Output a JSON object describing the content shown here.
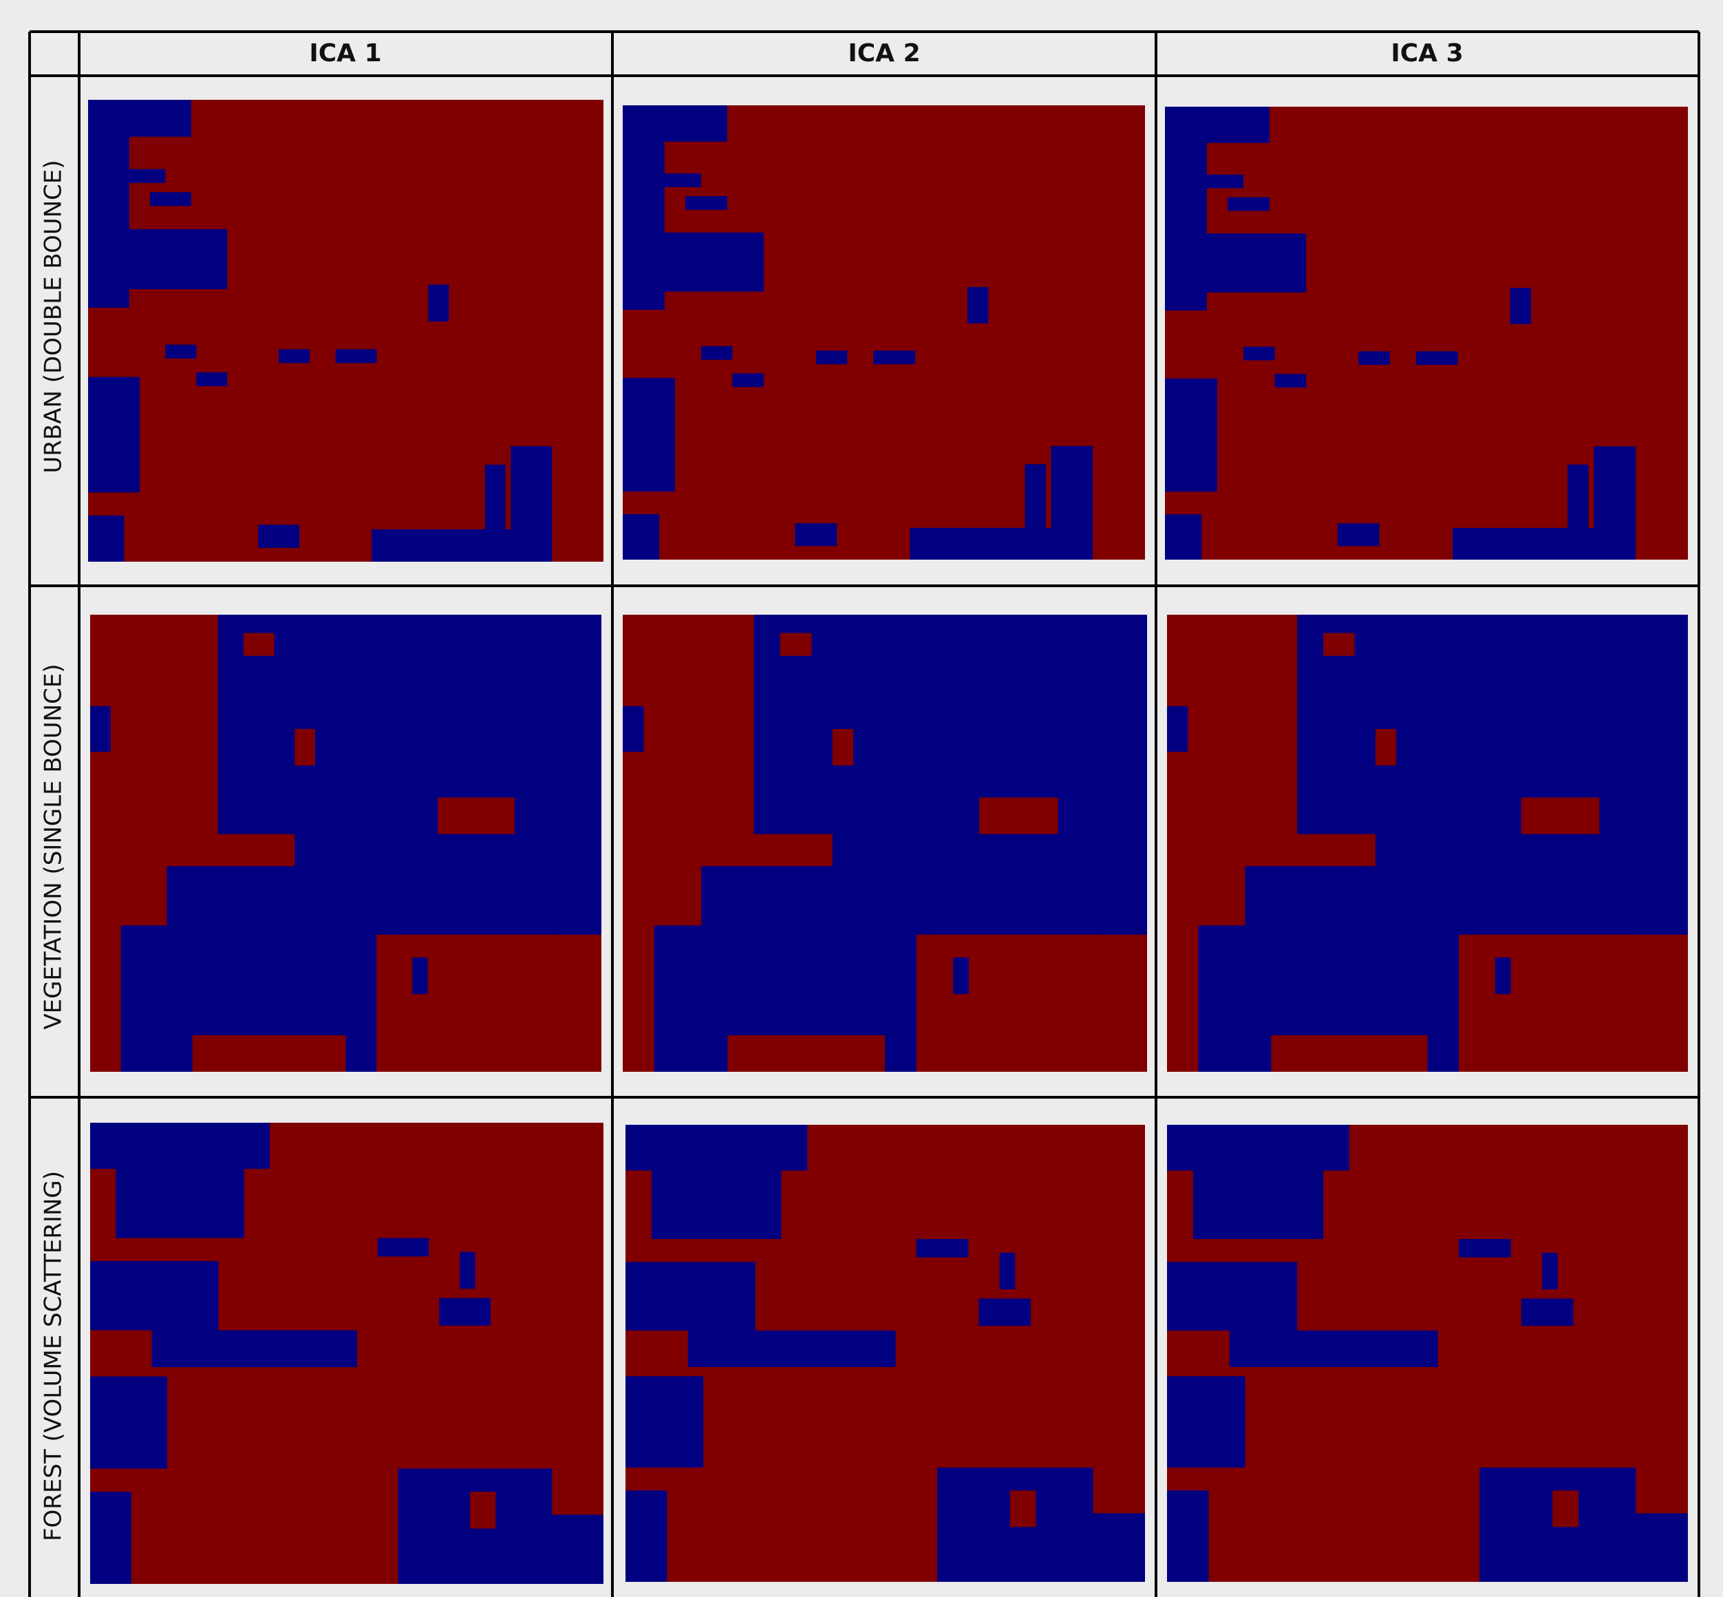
{
  "header": {
    "columns": [
      "ICA 1",
      "ICA 2",
      "ICA 3"
    ]
  },
  "rows": [
    {
      "label": "URBAN (DOUBLE BOUNCE)"
    },
    {
      "label": "VEGETATION (SINGLE BOUNCE)"
    },
    {
      "label": "FOREST (VOLUME SCATTERING)"
    }
  ]
}
